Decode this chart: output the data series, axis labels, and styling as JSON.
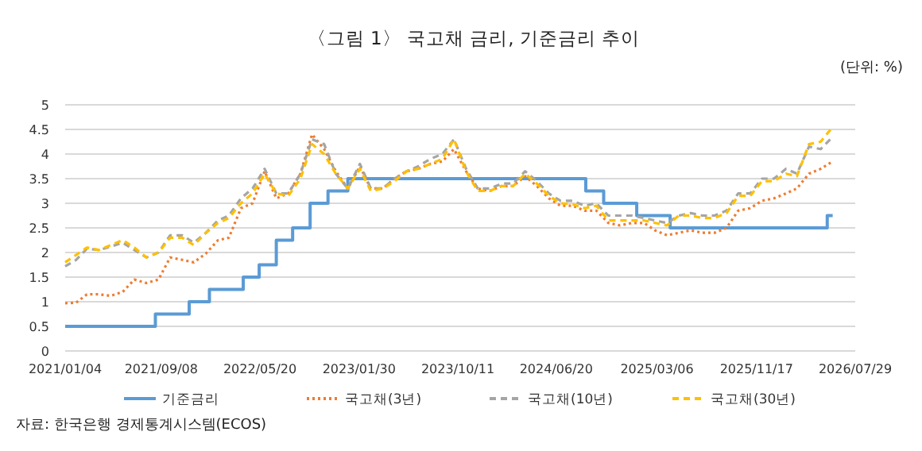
{
  "chart_data": {
    "type": "line",
    "title": "〈그림 1〉 국고채 금리, 기준금리 추이",
    "annotations": [
      "(단위: %)",
      "자료: 한국은행 경제통계시스템(ECOS)"
    ],
    "x": [
      "2021-01-04",
      "2021-02",
      "2021-03",
      "2021-04",
      "2021-05",
      "2021-06",
      "2021-07",
      "2021-08",
      "2021-09",
      "2021-10",
      "2021-11",
      "2021-12",
      "2022-01",
      "2022-02",
      "2022-03",
      "2022-04",
      "2022-05",
      "2022-06",
      "2022-07",
      "2022-08",
      "2022-09",
      "2022-10",
      "2022-11",
      "2022-12",
      "2023-01",
      "2023-02",
      "2023-03",
      "2023-04",
      "2023-05",
      "2023-06",
      "2023-07",
      "2023-08",
      "2023-09",
      "2023-10",
      "2023-11",
      "2023-12",
      "2024-01",
      "2024-02",
      "2024-03",
      "2024-04",
      "2024-05",
      "2024-06",
      "2024-07",
      "2024-08",
      "2024-09",
      "2024-10",
      "2024-11",
      "2024-12",
      "2025-01",
      "2025-02",
      "2025-03",
      "2025-04",
      "2025-05",
      "2025-06",
      "2025-07",
      "2025-08",
      "2025-09",
      "2025-10",
      "2025-11",
      "2025-12",
      "2026-01",
      "2026-02",
      "2026-03",
      "2026-04",
      "2026-05",
      "2026-06"
    ],
    "series": [
      {
        "name": "기준금리",
        "type": "step",
        "color": "#5b9bd5",
        "line_style": "solid",
        "x": [
          "2021-01-04",
          "2021-08-24",
          "2021-11-19",
          "2022-01-10",
          "2022-04-07",
          "2022-05-18",
          "2022-07-01",
          "2022-08-12",
          "2022-09-26",
          "2022-11-11",
          "2023-01-01",
          "2024-09-04",
          "2024-10-20",
          "2025-01-13",
          "2025-04-09",
          "2026-05-18",
          "2026-06"
        ],
        "values": [
          0.5,
          0.75,
          1.0,
          1.25,
          1.5,
          1.75,
          2.25,
          2.5,
          3.0,
          3.25,
          3.5,
          3.25,
          3.0,
          2.75,
          2.5,
          2.75,
          2.75
        ]
      },
      {
        "name": "국고채(3년)",
        "color": "#ed7d31",
        "line_style": "dotted",
        "values": [
          0.97,
          0.98,
          1.15,
          1.15,
          1.12,
          1.2,
          1.45,
          1.38,
          1.45,
          1.9,
          1.85,
          1.8,
          1.98,
          2.25,
          2.3,
          2.9,
          3.0,
          3.65,
          3.1,
          3.2,
          3.6,
          4.4,
          4.1,
          3.65,
          3.3,
          3.75,
          3.3,
          3.3,
          3.5,
          3.65,
          3.7,
          3.8,
          3.85,
          4.1,
          3.65,
          3.3,
          3.25,
          3.35,
          3.35,
          3.55,
          3.35,
          3.1,
          2.95,
          2.95,
          2.85,
          2.85,
          2.6,
          2.55,
          2.6,
          2.6,
          2.45,
          2.35,
          2.4,
          2.45,
          2.4,
          2.4,
          2.5,
          2.85,
          2.9,
          3.05,
          3.1,
          3.2,
          3.3,
          3.6,
          3.7,
          3.85
        ]
      },
      {
        "name": "국고채(10년)",
        "color": "#a5a5a5",
        "line_style": "dashed",
        "values": [
          1.72,
          1.85,
          2.08,
          2.05,
          2.12,
          2.2,
          2.05,
          1.9,
          2.0,
          2.35,
          2.35,
          2.2,
          2.4,
          2.65,
          2.75,
          3.1,
          3.3,
          3.7,
          3.2,
          3.2,
          3.6,
          4.3,
          4.2,
          3.6,
          3.3,
          3.8,
          3.3,
          3.3,
          3.5,
          3.65,
          3.75,
          3.9,
          4.0,
          4.3,
          3.7,
          3.3,
          3.3,
          3.4,
          3.4,
          3.65,
          3.45,
          3.2,
          3.05,
          3.05,
          2.95,
          3.0,
          2.75,
          2.75,
          2.75,
          2.7,
          2.65,
          2.6,
          2.75,
          2.8,
          2.75,
          2.75,
          2.85,
          3.2,
          3.2,
          3.5,
          3.5,
          3.7,
          3.6,
          4.15,
          4.1,
          4.35
        ]
      },
      {
        "name": "국고채(30년)",
        "color": "#ffc000",
        "line_style": "dashed",
        "values": [
          1.8,
          1.95,
          2.1,
          2.05,
          2.15,
          2.25,
          2.1,
          1.9,
          2.0,
          2.3,
          2.3,
          2.15,
          2.4,
          2.6,
          2.7,
          3.0,
          3.2,
          3.6,
          3.2,
          3.15,
          3.5,
          4.2,
          4.0,
          3.6,
          3.3,
          3.7,
          3.25,
          3.3,
          3.45,
          3.65,
          3.7,
          3.8,
          3.9,
          4.3,
          3.65,
          3.25,
          3.25,
          3.35,
          3.35,
          3.6,
          3.4,
          3.15,
          3.0,
          2.98,
          2.9,
          2.95,
          2.65,
          2.65,
          2.65,
          2.65,
          2.6,
          2.55,
          2.75,
          2.75,
          2.7,
          2.7,
          2.8,
          3.15,
          3.15,
          3.45,
          3.45,
          3.6,
          3.55,
          4.2,
          4.25,
          4.55
        ]
      }
    ],
    "xlim": [
      "2021-01-04",
      "2026-07-29"
    ],
    "xticks": [
      {
        "value": "2021-01-04",
        "label": "2021/01/04"
      },
      {
        "value": "2021-09-08",
        "label": "2021/09/08"
      },
      {
        "value": "2022-05-20",
        "label": "2022/05/20"
      },
      {
        "value": "2023-01-30",
        "label": "2023/01/30"
      },
      {
        "value": "2023-10-11",
        "label": "2023/10/11"
      },
      {
        "value": "2024-06-20",
        "label": "2024/06/20"
      },
      {
        "value": "2025-03-06",
        "label": "2025/03/06"
      },
      {
        "value": "2025-11-17",
        "label": "2025/11/17"
      },
      {
        "value": "2026-07-29",
        "label": "2026/07/29"
      }
    ],
    "ylim": [
      0,
      5
    ],
    "yticks": [
      0,
      0.5,
      1,
      1.5,
      2,
      2.5,
      3,
      3.5,
      4,
      4.5,
      5
    ],
    "grid": "y",
    "legend": "bottom",
    "marker": "none"
  }
}
